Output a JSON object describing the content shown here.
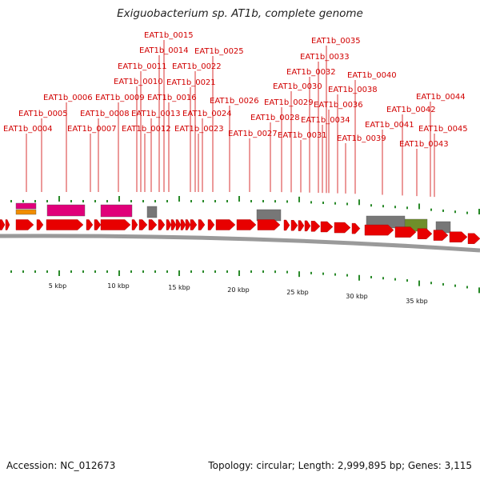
{
  "title": "Exiguobacterium sp. AT1b, complete genome",
  "footer": {
    "accession": "Accession: NC_012673",
    "summary": "Topology: circular; Length: 2,999,895 bp; Genes: 3,115"
  },
  "colors": {
    "label": "#d10000",
    "gene": "#e80000",
    "backbone": "#9a9a9a",
    "tick": "#2a8a2a",
    "feature_magenta": "#e0007a",
    "feature_orange": "#f08c00",
    "feature_gray": "#777777",
    "feature_olive": "#6f8f2a"
  },
  "scale_labels": [
    "5 kbp",
    "10 kbp",
    "15 kbp",
    "20 kbp",
    "25 kbp",
    "30 kbp",
    "35 kbp"
  ],
  "gene_labels": [
    "EAT1b_0004",
    "EAT1b_0005",
    "EAT1b_0006",
    "EAT1b_0007",
    "EAT1b_0008",
    "EAT1b_0009",
    "EAT1b_0010",
    "EAT1b_0011",
    "EAT1b_0012",
    "EAT1b_0013",
    "EAT1b_0014",
    "EAT1b_0015",
    "EAT1b_0016",
    "EAT1b_0021",
    "EAT1b_0022",
    "EAT1b_0023",
    "EAT1b_0024",
    "EAT1b_0025",
    "EAT1b_0026",
    "EAT1b_0027",
    "EAT1b_0028",
    "EAT1b_0029",
    "EAT1b_0030",
    "EAT1b_0031",
    "EAT1b_0032",
    "EAT1b_0033",
    "EAT1b_0034",
    "EAT1b_0035",
    "EAT1b_0036",
    "EAT1b_0038",
    "EAT1b_0039",
    "EAT1b_0040",
    "EAT1b_0041",
    "EAT1b_0042",
    "EAT1b_0043",
    "EAT1b_0044",
    "EAT1b_0045"
  ]
}
